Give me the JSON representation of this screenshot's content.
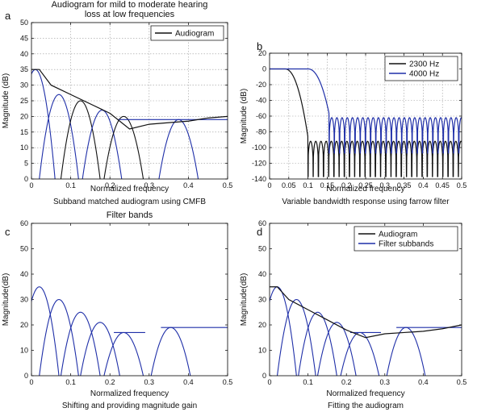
{
  "colors": {
    "black": "#111111",
    "blue": "#1f2fa8"
  },
  "chart_data": [
    {
      "id": "a",
      "type": "line",
      "panel_letter": "a",
      "title_lines": [
        "Audiogram for mild to moderate hearing",
        "loss at low frequencies"
      ],
      "xlabel": "Normalized frequency",
      "ylabel": "Magnitude (dB)",
      "caption": "Subband matched audiogram using CMFB",
      "xlim": [
        0,
        0.5
      ],
      "ylim": [
        0,
        50
      ],
      "xticks": [
        0,
        0.1,
        0.2,
        0.3,
        0.4,
        0.5
      ],
      "yticks": [
        0,
        5,
        10,
        15,
        20,
        25,
        30,
        35,
        40,
        45,
        50
      ],
      "grid": true,
      "legend": {
        "position": "top-right",
        "entries": [
          {
            "label": "Audiogram",
            "color": "#111111"
          }
        ]
      },
      "series": [
        {
          "name": "Audiogram",
          "color": "#111111",
          "x": [
            0,
            0.02,
            0.05,
            0.1,
            0.15,
            0.2,
            0.25,
            0.3,
            0.35,
            0.4,
            0.45,
            0.5
          ],
          "y": [
            35,
            35,
            30,
            27,
            24,
            21,
            16,
            17.5,
            18,
            18.5,
            19.5,
            20
          ]
        }
      ],
      "bands": [
        {
          "center": 0.01,
          "width": 0.05,
          "peak": 35,
          "color": "#1f2fa8"
        },
        {
          "center": 0.07,
          "width": 0.05,
          "peak": 27,
          "color": "#1f2fa8"
        },
        {
          "center": 0.125,
          "width": 0.05,
          "peak": 25,
          "color": "#111111"
        },
        {
          "center": 0.18,
          "width": 0.05,
          "peak": 22,
          "color": "#1f2fa8"
        },
        {
          "center": 0.235,
          "width": 0.05,
          "peak": 20,
          "color": "#111111"
        },
        {
          "center": 0.375,
          "width": 0.05,
          "peak": 19,
          "color": "#1f2fa8"
        }
      ],
      "plateau": {
        "x": [
          0.22,
          0.5
        ],
        "y": 19,
        "color": "#1f2fa8"
      }
    },
    {
      "id": "b",
      "type": "line",
      "panel_letter": "b",
      "title_lines": [],
      "xlabel": "Normalized frequency",
      "ylabel": "Magnitude (dB)",
      "caption": "Variable bandwidth response using farrow filter",
      "xlim": [
        0,
        0.5
      ],
      "ylim": [
        -140,
        20
      ],
      "xticks": [
        0,
        0.05,
        0.1,
        0.15,
        0.2,
        0.25,
        0.3,
        0.35,
        0.4,
        0.45,
        0.5
      ],
      "yticks": [
        -140,
        -120,
        -100,
        -80,
        -60,
        -40,
        -20,
        0,
        20
      ],
      "grid": true,
      "legend": {
        "position": "top-right",
        "entries": [
          {
            "label": "2300 Hz",
            "color": "#111111"
          },
          {
            "label": "4000 Hz",
            "color": "#1f2fa8"
          }
        ]
      },
      "series": [
        {
          "name": "2300 Hz",
          "color": "#111111",
          "cutoff": 0.1,
          "edge_start": 0.04,
          "stopband_level": -92,
          "ripple_period": 0.0135
        },
        {
          "name": "4000 Hz",
          "color": "#1f2fa8",
          "cutoff": 0.155,
          "edge_start": 0.1,
          "stopband_level": -62,
          "ripple_period": 0.0135
        }
      ]
    },
    {
      "id": "c",
      "type": "line",
      "panel_letter": "c",
      "title_lines": [
        "Filter bands"
      ],
      "xlabel": "Normalized frequency",
      "ylabel": "Magnitude(dB)",
      "caption": "Shifting and providing magnitude gain",
      "xlim": [
        0,
        0.5
      ],
      "ylim": [
        0,
        60
      ],
      "xticks": [
        0,
        0.1,
        0.2,
        0.3,
        0.4,
        0.5
      ],
      "yticks": [
        0,
        10,
        20,
        30,
        40,
        50,
        60
      ],
      "grid": false,
      "legend": null,
      "series": [],
      "bands": [
        {
          "center": 0.02,
          "width": 0.05,
          "peak": 35,
          "color": "#1f2fa8"
        },
        {
          "center": 0.07,
          "width": 0.05,
          "peak": 30,
          "color": "#1f2fa8"
        },
        {
          "center": 0.125,
          "width": 0.05,
          "peak": 25,
          "color": "#1f2fa8"
        },
        {
          "center": 0.175,
          "width": 0.05,
          "peak": 21,
          "color": "#1f2fa8"
        },
        {
          "center": 0.235,
          "width": 0.05,
          "peak": 17,
          "color": "#1f2fa8"
        },
        {
          "center": 0.355,
          "width": 0.05,
          "peak": 19,
          "color": "#1f2fa8"
        }
      ],
      "plateaus": [
        {
          "x": [
            0.21,
            0.29
          ],
          "y": 17,
          "color": "#1f2fa8"
        },
        {
          "x": [
            0.33,
            0.5
          ],
          "y": 19,
          "color": "#1f2fa8"
        }
      ]
    },
    {
      "id": "d",
      "type": "line",
      "panel_letter": "d",
      "title_lines": [],
      "xlabel": "Normalized frequency",
      "ylabel": "Magnitude(dB)",
      "caption": "Fitting the audiogram",
      "xlim": [
        0,
        0.5
      ],
      "ylim": [
        0,
        60
      ],
      "xticks": [
        0,
        0.1,
        0.2,
        0.3,
        0.4,
        0.5
      ],
      "yticks": [
        0,
        10,
        20,
        30,
        40,
        50,
        60
      ],
      "grid": false,
      "legend": {
        "position": "top-right",
        "entries": [
          {
            "label": "Audiogram",
            "color": "#111111"
          },
          {
            "label": "Filter subbands",
            "color": "#1f2fa8"
          }
        ]
      },
      "series": [
        {
          "name": "Audiogram",
          "color": "#111111",
          "x": [
            0,
            0.02,
            0.05,
            0.1,
            0.15,
            0.2,
            0.25,
            0.3,
            0.35,
            0.4,
            0.45,
            0.5
          ],
          "y": [
            35,
            35,
            30,
            26,
            22,
            18,
            15,
            16.5,
            17,
            17.5,
            18.5,
            20
          ]
        }
      ],
      "bands": [
        {
          "center": 0.02,
          "width": 0.05,
          "peak": 35,
          "color": "#1f2fa8"
        },
        {
          "center": 0.07,
          "width": 0.05,
          "peak": 30,
          "color": "#1f2fa8"
        },
        {
          "center": 0.125,
          "width": 0.05,
          "peak": 25,
          "color": "#1f2fa8"
        },
        {
          "center": 0.175,
          "width": 0.05,
          "peak": 21,
          "color": "#1f2fa8"
        },
        {
          "center": 0.235,
          "width": 0.05,
          "peak": 17,
          "color": "#1f2fa8"
        },
        {
          "center": 0.355,
          "width": 0.05,
          "peak": 19,
          "color": "#1f2fa8"
        }
      ],
      "plateaus": [
        {
          "x": [
            0.21,
            0.29
          ],
          "y": 17,
          "color": "#1f2fa8"
        },
        {
          "x": [
            0.33,
            0.5
          ],
          "y": 19,
          "color": "#1f2fa8"
        }
      ]
    }
  ]
}
